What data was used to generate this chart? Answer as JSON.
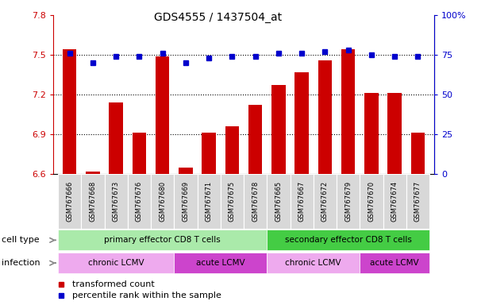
{
  "title": "GDS4555 / 1437504_at",
  "samples": [
    "GSM767666",
    "GSM767668",
    "GSM767673",
    "GSM767676",
    "GSM767680",
    "GSM767669",
    "GSM767671",
    "GSM767675",
    "GSM767678",
    "GSM767665",
    "GSM767667",
    "GSM767672",
    "GSM767679",
    "GSM767670",
    "GSM767674",
    "GSM767677"
  ],
  "transformed_count": [
    7.54,
    6.62,
    7.14,
    6.91,
    7.49,
    6.65,
    6.91,
    6.96,
    7.12,
    7.27,
    7.37,
    7.46,
    7.54,
    7.21,
    7.21,
    6.91
  ],
  "percentile_rank": [
    76,
    70,
    74,
    74,
    76,
    70,
    73,
    74,
    74,
    76,
    76,
    77,
    78,
    75,
    74,
    74
  ],
  "ylim_left": [
    6.6,
    7.8
  ],
  "ylim_right": [
    0,
    100
  ],
  "yticks_left": [
    6.6,
    6.9,
    7.2,
    7.5,
    7.8
  ],
  "yticks_right": [
    0,
    25,
    50,
    75,
    100
  ],
  "ytick_labels_left": [
    "6.6",
    "6.9",
    "7.2",
    "7.5",
    "7.8"
  ],
  "ytick_labels_right": [
    "0",
    "25",
    "50",
    "75",
    "100%"
  ],
  "hlines": [
    6.9,
    7.2,
    7.5
  ],
  "bar_color": "#cc0000",
  "dot_color": "#0000cc",
  "cell_type_groups": [
    {
      "label": "primary effector CD8 T cells",
      "start": 0,
      "end": 9,
      "color": "#aaeaaa"
    },
    {
      "label": "secondary effector CD8 T cells",
      "start": 9,
      "end": 16,
      "color": "#44cc44"
    }
  ],
  "infection_groups": [
    {
      "label": "chronic LCMV",
      "start": 0,
      "end": 5,
      "color": "#eeaaee"
    },
    {
      "label": "acute LCMV",
      "start": 5,
      "end": 9,
      "color": "#cc44cc"
    },
    {
      "label": "chronic LCMV",
      "start": 9,
      "end": 13,
      "color": "#eeaaee"
    },
    {
      "label": "acute LCMV",
      "start": 13,
      "end": 16,
      "color": "#cc44cc"
    }
  ],
  "legend_items": [
    {
      "label": "transformed count",
      "color": "#cc0000"
    },
    {
      "label": "percentile rank within the sample",
      "color": "#0000cc"
    }
  ],
  "row_labels": [
    "cell type",
    "infection"
  ],
  "tick_label_color_left": "#cc0000",
  "tick_label_color_right": "#0000cc",
  "bar_width": 0.6,
  "xlabel_bg": "#d0d0d0",
  "arrow_color": "#888888"
}
